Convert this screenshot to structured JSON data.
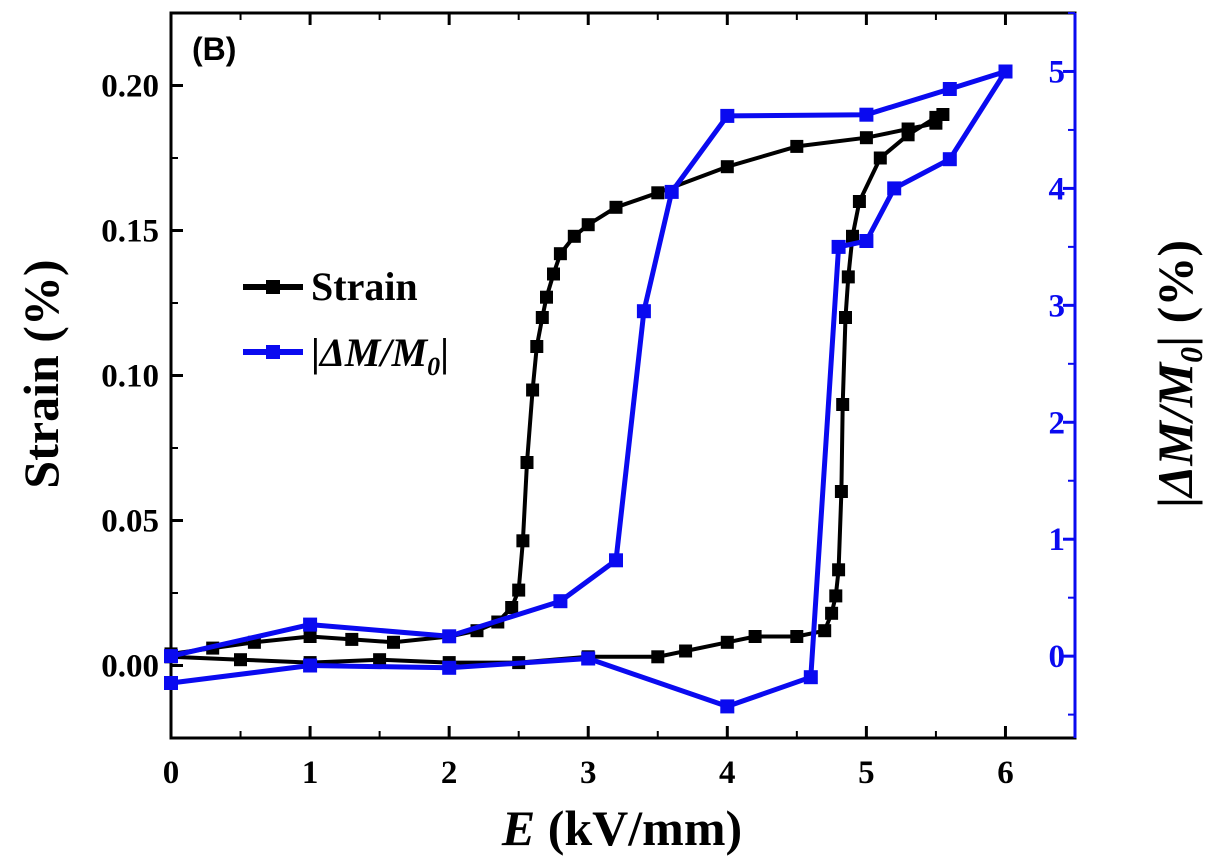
{
  "panel_label": "(B)",
  "colors": {
    "strain": "#000000",
    "dm": "#0a0af0"
  },
  "chart_data": {
    "type": "line",
    "xlabel_italic": "E",
    "xlabel_rest": " (kV/mm)",
    "ylabel_left": "Strain (%)",
    "ylabel_right_prefix": "|",
    "ylabel_right_italic": "ΔM/M",
    "ylabel_right_sub": "0",
    "ylabel_right_suffix": "| (%)",
    "xlim": [
      0,
      6.5
    ],
    "ylim_left": [
      -0.025,
      0.225
    ],
    "ylim_right": [
      -0.7,
      5.5
    ],
    "x_ticks": [
      0,
      1,
      2,
      3,
      4,
      5,
      6
    ],
    "x_tick_labels": [
      "0",
      "1",
      "2",
      "3",
      "4",
      "5",
      "6"
    ],
    "y_left_ticks": [
      0.0,
      0.05,
      0.1,
      0.15,
      0.2
    ],
    "y_left_tick_labels": [
      "0.00",
      "0.05",
      "0.10",
      "0.15",
      "0.20"
    ],
    "y_right_ticks": [
      0,
      1,
      2,
      3,
      4,
      5
    ],
    "y_right_tick_labels": [
      "0",
      "1",
      "2",
      "3",
      "4",
      "5"
    ],
    "legend": {
      "placement": "center-left",
      "strain_label": "Strain",
      "dm_prefix": "|",
      "dm_italic": "ΔM/M",
      "dm_sub": "0",
      "dm_suffix": "|"
    },
    "series": [
      {
        "name": "Strain",
        "axis": "left",
        "x": [
          0,
          0.3,
          0.6,
          1.0,
          1.3,
          1.6,
          2.0,
          2.2,
          2.35,
          2.45,
          2.5,
          2.53,
          2.56,
          2.6,
          2.63,
          2.67,
          2.7,
          2.75,
          2.8,
          2.9,
          3.0,
          3.2,
          3.5,
          4.0,
          4.5,
          5.0,
          5.3,
          5.5,
          5.55,
          5.5,
          5.3,
          5.1,
          4.95,
          4.9,
          4.87,
          4.85,
          4.83,
          4.82,
          4.8,
          4.78,
          4.75,
          4.7,
          4.5,
          4.2,
          4.0,
          3.7,
          3.5,
          3.0,
          2.5,
          2.0,
          1.5,
          1.0,
          0.5,
          0.0
        ],
        "y": [
          0.004,
          0.006,
          0.008,
          0.01,
          0.009,
          0.008,
          0.01,
          0.012,
          0.015,
          0.02,
          0.026,
          0.043,
          0.07,
          0.095,
          0.11,
          0.12,
          0.127,
          0.135,
          0.142,
          0.148,
          0.152,
          0.158,
          0.163,
          0.172,
          0.179,
          0.182,
          0.185,
          0.187,
          0.19,
          0.189,
          0.183,
          0.175,
          0.16,
          0.148,
          0.134,
          0.12,
          0.09,
          0.06,
          0.033,
          0.024,
          0.018,
          0.012,
          0.01,
          0.01,
          0.008,
          0.005,
          0.003,
          0.003,
          0.001,
          0.001,
          0.002,
          0.001,
          0.002,
          0.003
        ]
      },
      {
        "name": "|ΔM/M0|",
        "axis": "right",
        "x": [
          0,
          1,
          2,
          2.8,
          3.2,
          3.4,
          3.6,
          4.0,
          5.0,
          5.6,
          6.0,
          5.6,
          5.2,
          5.0,
          4.8,
          4.6,
          4.0,
          3.0,
          2.0,
          1.0,
          0.0
        ],
        "y": [
          0.0,
          0.27,
          0.17,
          0.47,
          0.82,
          2.95,
          3.97,
          4.62,
          4.63,
          4.85,
          5.0,
          4.25,
          4.0,
          3.55,
          3.5,
          -0.18,
          -0.43,
          -0.02,
          -0.1,
          -0.08,
          -0.23
        ]
      }
    ]
  }
}
